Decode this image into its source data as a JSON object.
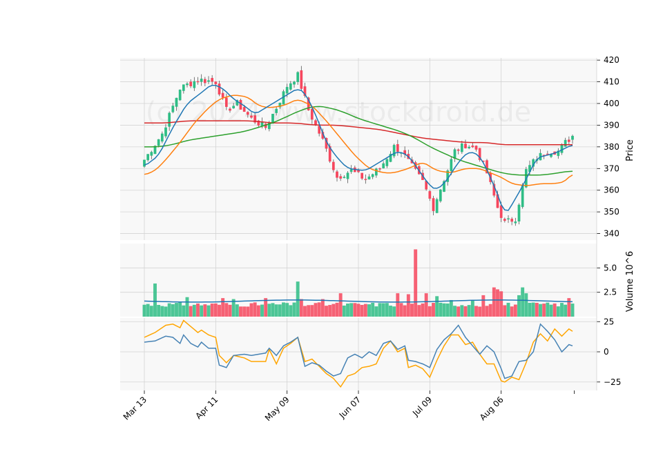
{
  "chart_data": {
    "type": "candlestick",
    "watermark": "(c) 2024 www.stockdroid.de",
    "colors": {
      "up": "#2ebd85",
      "down": "#f6465d",
      "ma_blue": "#1f77b4",
      "ma_orange": "#ff7f0e",
      "ma_green": "#2ca02c",
      "ma_red": "#d62728",
      "volume_avg": "#1f77b4",
      "osc_fast": "#4682b4",
      "osc_slow": "#ffa500",
      "grid": "#d3d3d3",
      "panel_bg": "#f8f8f8"
    },
    "x_tick_labels": [
      "Mar 13",
      "Apr 11",
      "May 09",
      "Jun 07",
      "Jul 09",
      "Aug 06"
    ],
    "x_tick_index": [
      0,
      20,
      40,
      60,
      80,
      100
    ],
    "n_sessions": 121,
    "price_panel": {
      "ylabel": "Price",
      "ylim": [
        337,
        421
      ],
      "yticks": [
        340,
        350,
        360,
        370,
        380,
        390,
        400,
        410,
        420
      ],
      "close_anchors": [
        [
          0,
          374
        ],
        [
          5,
          386
        ],
        [
          10,
          407
        ],
        [
          15,
          411
        ],
        [
          20,
          410
        ],
        [
          23,
          397
        ],
        [
          26,
          400
        ],
        [
          30,
          393
        ],
        [
          34,
          389
        ],
        [
          37,
          398
        ],
        [
          40,
          408
        ],
        [
          43,
          413
        ],
        [
          46,
          397
        ],
        [
          50,
          383
        ],
        [
          54,
          366
        ],
        [
          58,
          369
        ],
        [
          62,
          365
        ],
        [
          66,
          370
        ],
        [
          70,
          380
        ],
        [
          72,
          378
        ],
        [
          75,
          371
        ],
        [
          78,
          364
        ],
        [
          81,
          352
        ],
        [
          84,
          365
        ],
        [
          87,
          378
        ],
        [
          90,
          381
        ],
        [
          93,
          379
        ],
        [
          96,
          368
        ],
        [
          99,
          352
        ],
        [
          101,
          345
        ],
        [
          104,
          347
        ],
        [
          107,
          369
        ],
        [
          110,
          375
        ],
        [
          113,
          378
        ],
        [
          116,
          378
        ],
        [
          118,
          382
        ],
        [
          120,
          385
        ]
      ],
      "ma_blue_anchors": [
        [
          0,
          371
        ],
        [
          4,
          376
        ],
        [
          8,
          389
        ],
        [
          12,
          400
        ],
        [
          16,
          405
        ],
        [
          19,
          409
        ],
        [
          22,
          407
        ],
        [
          25,
          402
        ],
        [
          28,
          399
        ],
        [
          31,
          395
        ],
        [
          34,
          398
        ],
        [
          37,
          401
        ],
        [
          40,
          404
        ],
        [
          43,
          407
        ],
        [
          45,
          405
        ],
        [
          48,
          395
        ],
        [
          51,
          382
        ],
        [
          54,
          375
        ],
        [
          57,
          370
        ],
        [
          62,
          369
        ],
        [
          67,
          374
        ],
        [
          71,
          378
        ],
        [
          74,
          376
        ],
        [
          77,
          369
        ],
        [
          80,
          362
        ],
        [
          82,
          360
        ],
        [
          85,
          365
        ],
        [
          88,
          373
        ],
        [
          91,
          378
        ],
        [
          94,
          376
        ],
        [
          97,
          366
        ],
        [
          100,
          354
        ],
        [
          101,
          348
        ],
        [
          104,
          356
        ],
        [
          107,
          365
        ],
        [
          110,
          375
        ],
        [
          115,
          377
        ],
        [
          120,
          381
        ]
      ],
      "ma_orange_anchors": [
        [
          0,
          367
        ],
        [
          3,
          369
        ],
        [
          6,
          374
        ],
        [
          10,
          382
        ],
        [
          14,
          391
        ],
        [
          18,
          398
        ],
        [
          21,
          402
        ],
        [
          25,
          404
        ],
        [
          29,
          403
        ],
        [
          32,
          399
        ],
        [
          35,
          398
        ],
        [
          39,
          399
        ],
        [
          43,
          402
        ],
        [
          47,
          399
        ],
        [
          51,
          392
        ],
        [
          55,
          384
        ],
        [
          59,
          376
        ],
        [
          63,
          370
        ],
        [
          67,
          368
        ],
        [
          70,
          368
        ],
        [
          74,
          370
        ],
        [
          78,
          373
        ],
        [
          82,
          369
        ],
        [
          86,
          368
        ],
        [
          90,
          370
        ],
        [
          94,
          370
        ],
        [
          97,
          368
        ],
        [
          100,
          366
        ],
        [
          103,
          363
        ],
        [
          107,
          362
        ],
        [
          111,
          363
        ],
        [
          115,
          363
        ],
        [
          118,
          364
        ],
        [
          120,
          368
        ]
      ],
      "ma_green_anchors": [
        [
          0,
          380
        ],
        [
          4,
          380
        ],
        [
          8,
          381
        ],
        [
          12,
          383
        ],
        [
          16,
          384
        ],
        [
          20,
          385
        ],
        [
          24,
          386
        ],
        [
          28,
          387
        ],
        [
          32,
          389
        ],
        [
          36,
          391
        ],
        [
          40,
          394
        ],
        [
          44,
          397
        ],
        [
          48,
          399
        ],
        [
          52,
          398
        ],
        [
          56,
          396
        ],
        [
          60,
          393
        ],
        [
          64,
          391
        ],
        [
          68,
          389
        ],
        [
          72,
          387
        ],
        [
          76,
          384
        ],
        [
          80,
          380
        ],
        [
          84,
          377
        ],
        [
          88,
          374
        ],
        [
          92,
          372
        ],
        [
          96,
          370
        ],
        [
          100,
          368
        ],
        [
          104,
          367
        ],
        [
          108,
          367
        ],
        [
          112,
          367
        ],
        [
          116,
          368
        ],
        [
          120,
          369
        ]
      ],
      "ma_red_anchors": [
        [
          0,
          391
        ],
        [
          6,
          391
        ],
        [
          12,
          392
        ],
        [
          18,
          392
        ],
        [
          24,
          392
        ],
        [
          30,
          392
        ],
        [
          36,
          391
        ],
        [
          42,
          391
        ],
        [
          48,
          390
        ],
        [
          54,
          390
        ],
        [
          60,
          389
        ],
        [
          66,
          388
        ],
        [
          72,
          386
        ],
        [
          78,
          384
        ],
        [
          84,
          383
        ],
        [
          90,
          382
        ],
        [
          96,
          382
        ],
        [
          100,
          381
        ],
        [
          106,
          381
        ],
        [
          112,
          381
        ],
        [
          120,
          381
        ]
      ]
    },
    "volume_panel": {
      "ylabel": "Volume  10^6",
      "ylim": [
        0,
        7.5
      ],
      "yticks": [
        2.5,
        5.0
      ],
      "ytick_labels": [
        "2.5",
        "5.0"
      ],
      "avg_level": 1.6,
      "base": 1.2,
      "spikes": {
        "3": 3.4,
        "12": 2.0,
        "22": 1.9,
        "25": 1.8,
        "34": 1.9,
        "40": 1.4,
        "43": 3.6,
        "44": 1.8,
        "50": 1.8,
        "55": 2.4,
        "62": 1.3,
        "68": 1.4,
        "71": 2.4,
        "74": 2.3,
        "76": 6.9,
        "79": 2.4,
        "82": 2.1,
        "86": 1.7,
        "92": 1.7,
        "95": 2.2,
        "98": 3.0,
        "99": 2.8,
        "100": 2.6,
        "105": 2.2,
        "106": 3.0,
        "107": 2.4,
        "119": 1.9
      }
    },
    "oscillator_panel": {
      "ylim": [
        -32,
        28
      ],
      "yticks": [
        -25,
        0,
        25
      ],
      "ytick_labels": [
        "−25",
        "0",
        "25"
      ],
      "fast_anchors": [
        [
          0,
          8
        ],
        [
          3,
          9
        ],
        [
          6,
          13
        ],
        [
          8,
          12
        ],
        [
          10,
          7
        ],
        [
          11,
          14
        ],
        [
          13,
          7
        ],
        [
          15,
          4
        ],
        [
          16,
          8
        ],
        [
          18,
          3
        ],
        [
          20,
          3
        ],
        [
          21,
          -11
        ],
        [
          23,
          -13
        ],
        [
          25,
          -3
        ],
        [
          28,
          -2
        ],
        [
          30,
          -3
        ],
        [
          32,
          -2
        ],
        [
          34,
          -1
        ],
        [
          35,
          3
        ],
        [
          37,
          -3
        ],
        [
          39,
          5
        ],
        [
          41,
          8
        ],
        [
          43,
          12
        ],
        [
          45,
          -12
        ],
        [
          47,
          -9
        ],
        [
          49,
          -11
        ],
        [
          51,
          -16
        ],
        [
          53,
          -20
        ],
        [
          55,
          -18
        ],
        [
          57,
          -5
        ],
        [
          59,
          -2
        ],
        [
          61,
          -5
        ],
        [
          63,
          0
        ],
        [
          65,
          -3
        ],
        [
          67,
          7
        ],
        [
          69,
          9
        ],
        [
          71,
          2
        ],
        [
          73,
          5
        ],
        [
          74,
          -7
        ],
        [
          76,
          -8
        ],
        [
          78,
          -10
        ],
        [
          80,
          -13
        ],
        [
          82,
          2
        ],
        [
          84,
          10
        ],
        [
          86,
          15
        ],
        [
          88,
          22
        ],
        [
          90,
          12
        ],
        [
          92,
          5
        ],
        [
          94,
          -2
        ],
        [
          96,
          5
        ],
        [
          98,
          0
        ],
        [
          100,
          -14
        ],
        [
          101,
          -22
        ],
        [
          103,
          -20
        ],
        [
          105,
          -8
        ],
        [
          107,
          -7
        ],
        [
          109,
          0
        ],
        [
          111,
          23
        ],
        [
          113,
          17
        ],
        [
          115,
          10
        ],
        [
          117,
          0
        ],
        [
          119,
          6
        ],
        [
          120,
          5
        ]
      ],
      "slow_anchors": [
        [
          0,
          12
        ],
        [
          3,
          16
        ],
        [
          6,
          22
        ],
        [
          8,
          23
        ],
        [
          10,
          20
        ],
        [
          11,
          26
        ],
        [
          13,
          21
        ],
        [
          15,
          16
        ],
        [
          16,
          18
        ],
        [
          18,
          14
        ],
        [
          20,
          12
        ],
        [
          21,
          -3
        ],
        [
          23,
          -9
        ],
        [
          25,
          -3
        ],
        [
          28,
          -5
        ],
        [
          30,
          -8
        ],
        [
          32,
          -8
        ],
        [
          34,
          -8
        ],
        [
          35,
          2
        ],
        [
          37,
          -10
        ],
        [
          39,
          3
        ],
        [
          41,
          7
        ],
        [
          43,
          12
        ],
        [
          45,
          -8
        ],
        [
          47,
          -6
        ],
        [
          49,
          -12
        ],
        [
          51,
          -18
        ],
        [
          53,
          -22
        ],
        [
          55,
          -29
        ],
        [
          57,
          -20
        ],
        [
          59,
          -18
        ],
        [
          61,
          -13
        ],
        [
          63,
          -12
        ],
        [
          65,
          -10
        ],
        [
          67,
          3
        ],
        [
          69,
          9
        ],
        [
          71,
          0
        ],
        [
          73,
          3
        ],
        [
          74,
          -13
        ],
        [
          76,
          -11
        ],
        [
          78,
          -14
        ],
        [
          80,
          -21
        ],
        [
          82,
          -7
        ],
        [
          84,
          5
        ],
        [
          86,
          14
        ],
        [
          88,
          14
        ],
        [
          90,
          6
        ],
        [
          92,
          8
        ],
        [
          94,
          -2
        ],
        [
          96,
          -10
        ],
        [
          98,
          -10
        ],
        [
          100,
          -24
        ],
        [
          101,
          -25
        ],
        [
          103,
          -21
        ],
        [
          105,
          -23
        ],
        [
          107,
          -9
        ],
        [
          109,
          8
        ],
        [
          111,
          15
        ],
        [
          113,
          9
        ],
        [
          115,
          19
        ],
        [
          117,
          13
        ],
        [
          119,
          19
        ],
        [
          120,
          17
        ]
      ]
    }
  }
}
